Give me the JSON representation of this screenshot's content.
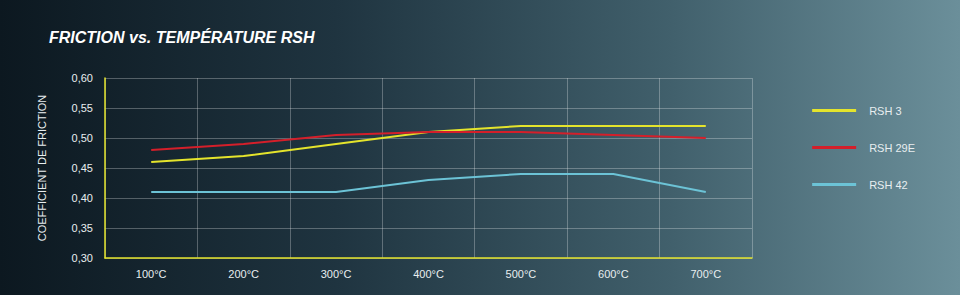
{
  "chart_data": {
    "type": "line",
    "title": "FRICTION vs. TEMPÉRATURE RSH",
    "y_label": "COEFFICIENT DE FRICTION",
    "categories": [
      "100°C",
      "200°C",
      "300°C",
      "400°C",
      "500°C",
      "600°C",
      "700°C"
    ],
    "series": [
      {
        "name": "RSH 3",
        "color": "#e4e42c",
        "values": [
          0.46,
          0.47,
          0.49,
          0.51,
          0.52,
          0.52,
          0.52
        ]
      },
      {
        "name": "RSH 29E",
        "color": "#d41f2a",
        "values": [
          0.48,
          0.49,
          0.505,
          0.51,
          0.51,
          0.505,
          0.5
        ]
      },
      {
        "name": "RSH 42",
        "color": "#6cc3d6",
        "values": [
          0.41,
          0.41,
          0.41,
          0.43,
          0.44,
          0.44,
          0.41
        ]
      }
    ],
    "ylim": [
      0.3,
      0.6
    ],
    "yticks": [
      {
        "value": 0.3,
        "label": "0,30"
      },
      {
        "value": 0.35,
        "label": "0,35"
      },
      {
        "value": 0.4,
        "label": "0,40"
      },
      {
        "value": 0.45,
        "label": "0,45"
      },
      {
        "value": 0.5,
        "label": "0,50"
      },
      {
        "value": 0.55,
        "label": "0,55"
      },
      {
        "value": 0.6,
        "label": "0,60"
      }
    ],
    "grid": true,
    "legend": "right"
  }
}
